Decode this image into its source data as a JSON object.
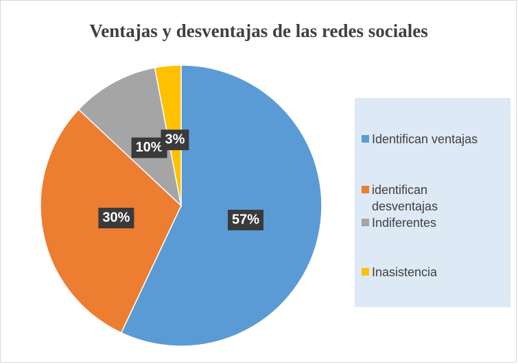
{
  "chart_data": {
    "type": "pie",
    "title": "Ventajas y desventajas de las redes sociales",
    "categories": [
      "Identifican ventajas",
      "identifican desventajas",
      "Indiferentes",
      "Inasistencia"
    ],
    "values": [
      57,
      30,
      10,
      3
    ],
    "value_labels": [
      "57%",
      "30%",
      "10%",
      "3%"
    ],
    "colors": [
      "#5b9bd5",
      "#ed7d31",
      "#a5a5a5",
      "#ffc000"
    ],
    "legend": "right"
  }
}
